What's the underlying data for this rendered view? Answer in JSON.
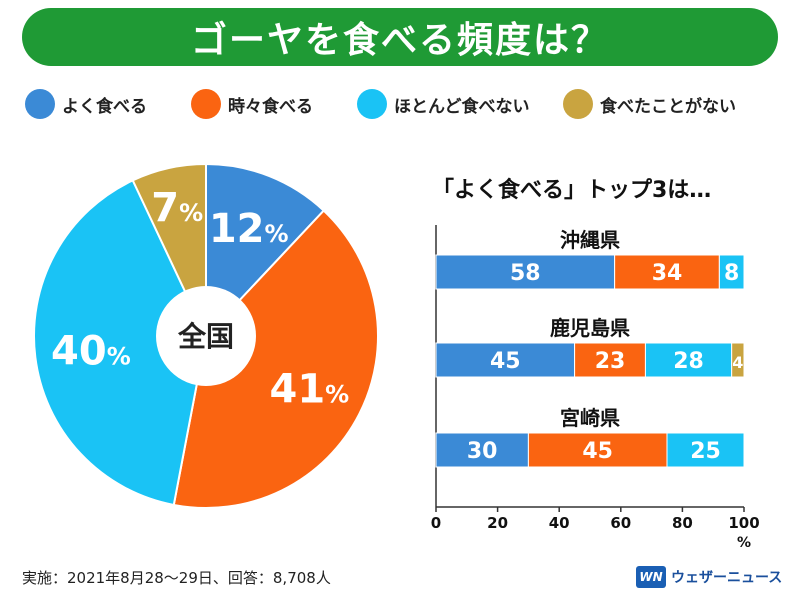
{
  "title": "ゴーヤを食べる頻度は？",
  "colors": {
    "often": "#3b8ad6",
    "sometimes": "#fa6411",
    "rarely": "#1ac3f5",
    "never": "#c9a440",
    "title_bg": "#1f9a35"
  },
  "legend": [
    {
      "label": "よく食べる",
      "color": "#3b8ad6"
    },
    {
      "label": "時々食べる",
      "color": "#fa6411"
    },
    {
      "label": "ほとんど食べない",
      "color": "#1ac3f5"
    },
    {
      "label": "食べたことがない",
      "color": "#c9a440"
    }
  ],
  "bar_section_title": "「よく食べる」トップ3は…",
  "footnote": "実施：2021年8月28〜29日、回答：8,708人",
  "brand": {
    "logo_text": "WN",
    "name": "ウェザーニュース"
  },
  "chart_data": [
    {
      "type": "pie",
      "title": "全国",
      "categories": [
        "よく食べる",
        "時々食べる",
        "ほとんど食べない",
        "食べたことがない"
      ],
      "values": [
        12,
        41,
        40,
        7
      ],
      "value_suffix": "%",
      "colors": [
        "#3b8ad6",
        "#fa6411",
        "#1ac3f5",
        "#c9a440"
      ]
    },
    {
      "type": "bar",
      "orientation": "horizontal",
      "stacked": true,
      "title": "「よく食べる」トップ3は…",
      "categories": [
        "沖縄県",
        "鹿児島県",
        "宮崎県"
      ],
      "series": [
        {
          "name": "よく食べる",
          "values": [
            58,
            45,
            30
          ],
          "color": "#3b8ad6"
        },
        {
          "name": "時々食べる",
          "values": [
            34,
            23,
            45
          ],
          "color": "#fa6411"
        },
        {
          "name": "ほとんど食べない",
          "values": [
            8,
            28,
            25
          ],
          "color": "#1ac3f5"
        },
        {
          "name": "食べたことがない",
          "values": [
            0,
            4,
            0
          ],
          "color": "#c9a440"
        }
      ],
      "xlim": [
        0,
        100
      ],
      "xticks": [
        0,
        20,
        40,
        60,
        80,
        100
      ],
      "xlabel": "%"
    }
  ]
}
